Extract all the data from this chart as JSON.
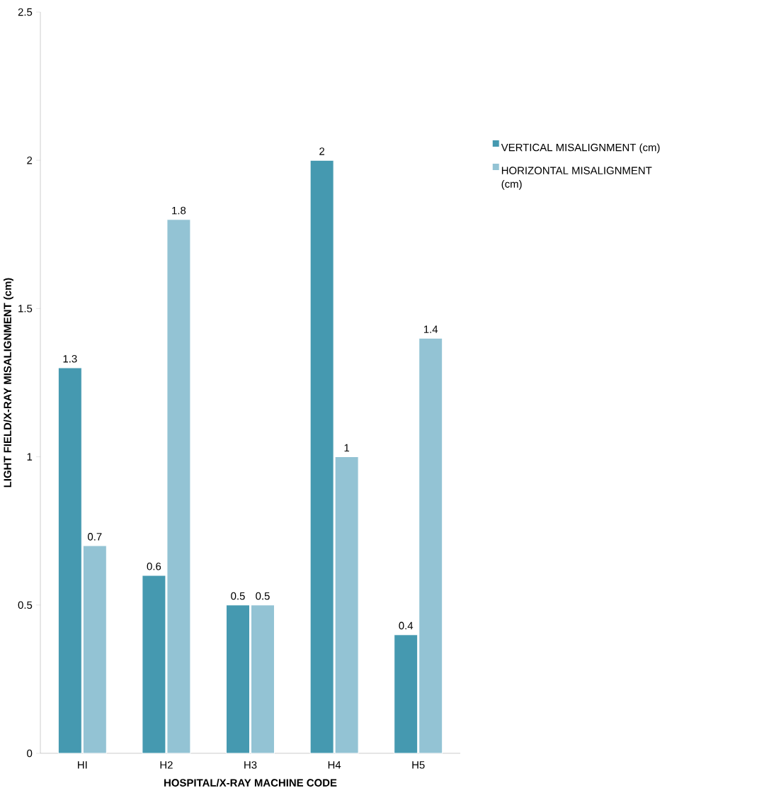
{
  "chart_data": {
    "type": "bar",
    "xlabel": "HOSPITAL/X-RAY MACHINE CODE",
    "ylabel": "LIGHT FIELD/X-RAY MISALIGNMENT (cm)",
    "categories": [
      "HI",
      "H2",
      "H3",
      "H4",
      "H5"
    ],
    "series": [
      {
        "name": "VERTICAL MISALIGNMENT (cm)",
        "color": "#4599b0",
        "values": [
          1.3,
          0.6,
          0.5,
          2,
          0.4
        ]
      },
      {
        "name": "HORIZONTAL MISALIGNMENT (cm)",
        "color": "#93c3d4",
        "values": [
          0.7,
          1.8,
          0.5,
          1,
          1.4
        ]
      }
    ],
    "ylim": [
      0,
      2.5
    ],
    "yticks": [
      0,
      0.5,
      1,
      1.5,
      2,
      2.5
    ],
    "data_labels": true,
    "legend": "right",
    "grid": false
  }
}
